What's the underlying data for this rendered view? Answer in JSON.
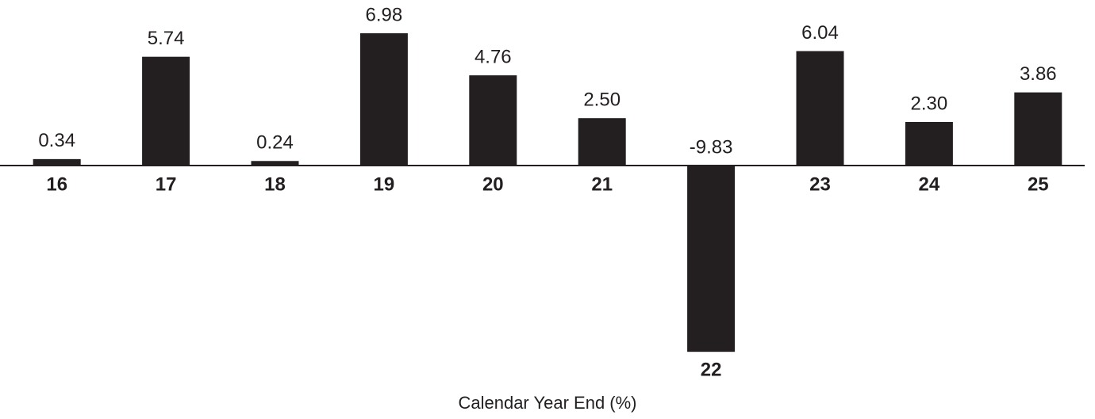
{
  "chart_data": {
    "type": "bar",
    "x_label": "Calendar Year End (%)",
    "categories": [
      "16",
      "17",
      "18",
      "19",
      "20",
      "21",
      "22",
      "23",
      "24",
      "25"
    ],
    "values": [
      0.34,
      5.74,
      0.24,
      6.98,
      4.76,
      2.5,
      -9.83,
      6.04,
      2.3,
      3.86
    ],
    "value_labels": [
      "0.34",
      "5.74",
      "0.24",
      "6.98",
      "4.76",
      "2.50",
      "-9.83",
      "6.04",
      "2.30",
      "3.86"
    ],
    "color": "#231f20"
  }
}
